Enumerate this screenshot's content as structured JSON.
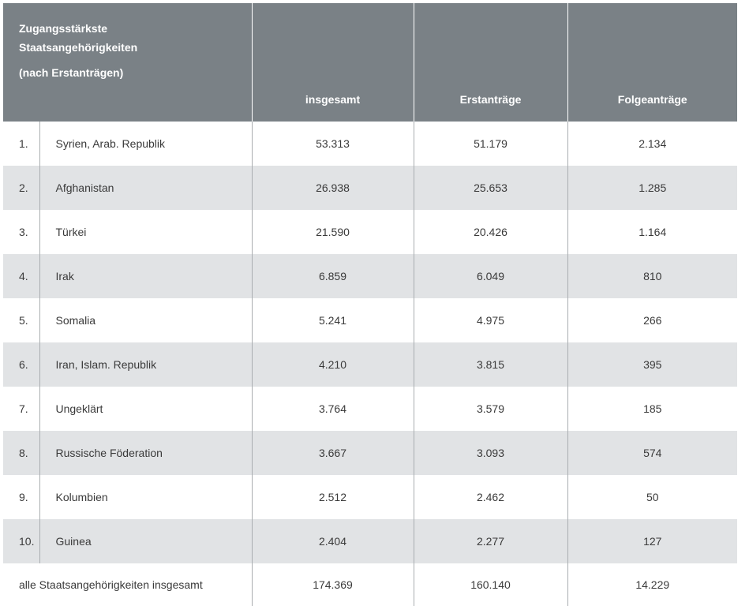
{
  "table": {
    "header": {
      "title_line1": "Zugangsstärkste",
      "title_line2": "Staatsangehörigkeiten",
      "title_line3": "(nach Erstanträgen)",
      "col_total": "insgesamt",
      "col_first": "Erstanträge",
      "col_follow": "Folgeanträge"
    },
    "rows": [
      {
        "rank": "1.",
        "country": "Syrien, Arab. Republik",
        "total": "53.313",
        "first": "51.179",
        "follow": "2.134"
      },
      {
        "rank": "2.",
        "country": "Afghanistan",
        "total": "26.938",
        "first": "25.653",
        "follow": "1.285"
      },
      {
        "rank": "3.",
        "country": "Türkei",
        "total": "21.590",
        "first": "20.426",
        "follow": "1.164"
      },
      {
        "rank": "4.",
        "country": "Irak",
        "total": "6.859",
        "first": "6.049",
        "follow": "810"
      },
      {
        "rank": "5.",
        "country": "Somalia",
        "total": "5.241",
        "first": "4.975",
        "follow": "266"
      },
      {
        "rank": "6.",
        "country": "Iran, Islam. Republik",
        "total": "4.210",
        "first": "3.815",
        "follow": "395"
      },
      {
        "rank": "7.",
        "country": "Ungeklärt",
        "total": "3.764",
        "first": "3.579",
        "follow": "185"
      },
      {
        "rank": "8.",
        "country": "Russische Föderation",
        "total": "3.667",
        "first": "3.093",
        "follow": "574"
      },
      {
        "rank": "9.",
        "country": "Kolumbien",
        "total": "2.512",
        "first": "2.462",
        "follow": "50"
      },
      {
        "rank": "10.",
        "country": "Guinea",
        "total": "2.404",
        "first": "2.277",
        "follow": "127"
      }
    ],
    "footer": {
      "label": "alle Staatsangehörigkeiten insgesamt",
      "total": "174.369",
      "first": "160.140",
      "follow": "14.229"
    }
  },
  "colors": {
    "header_bg": "#7a8186",
    "row_alt_bg": "#e1e3e5",
    "divider": "#a9adb0"
  }
}
